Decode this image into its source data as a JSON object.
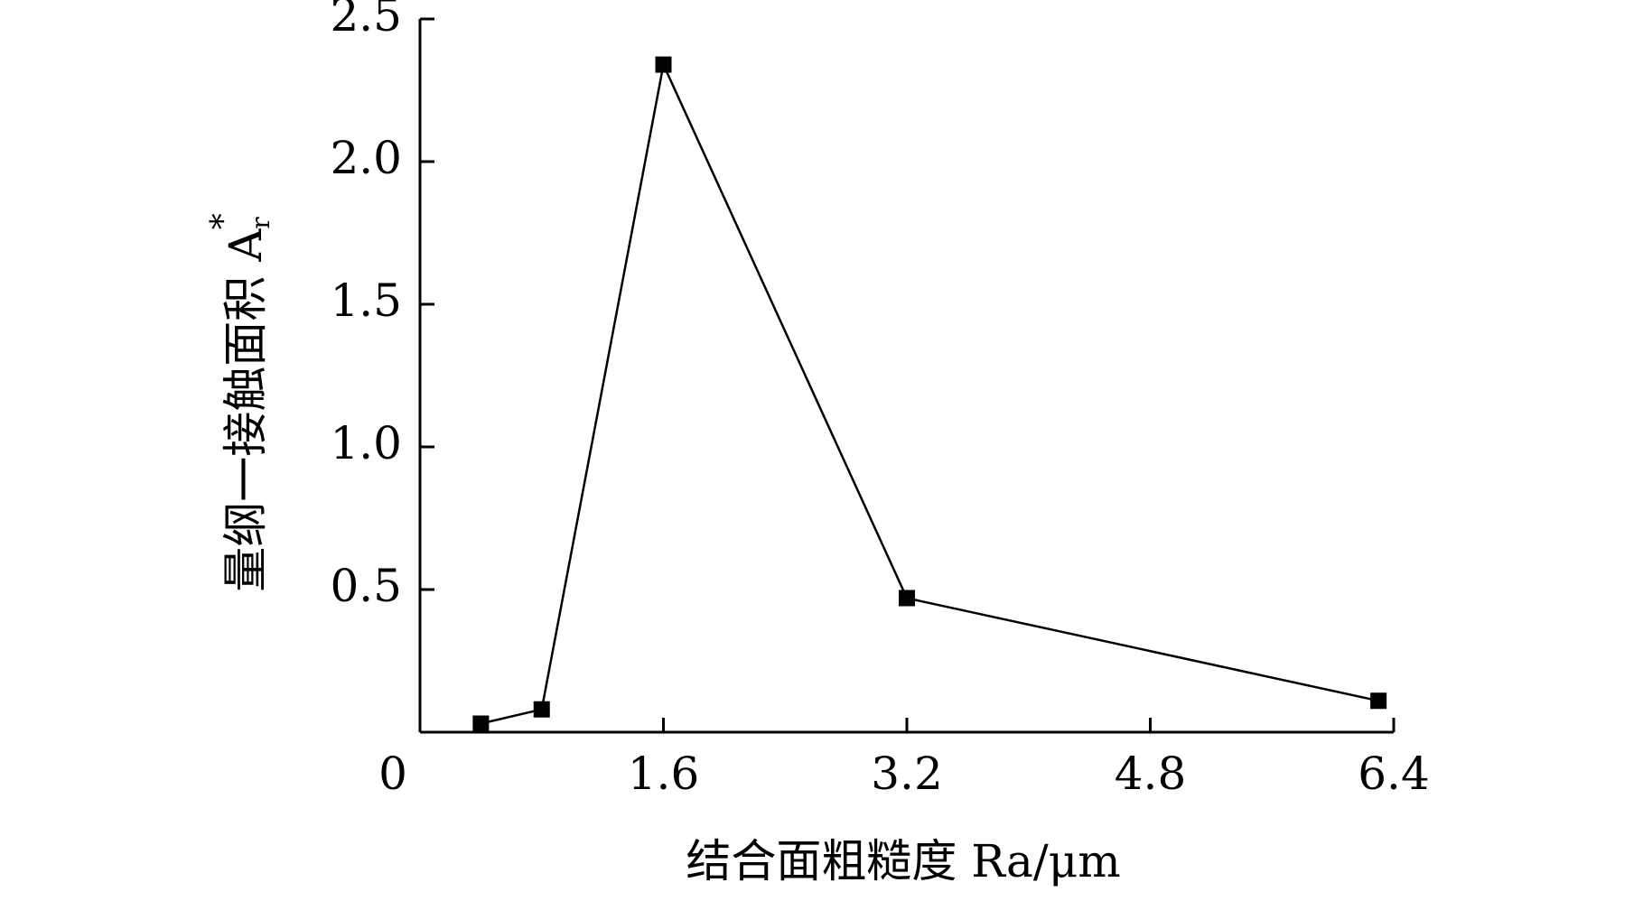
{
  "chart_data": {
    "type": "line",
    "x_label": "结合面粗糙度 Ra/μm",
    "y_label": "量纲一接触面积 A",
    "y_label_subscript": "r",
    "y_label_superscript": "*",
    "x": [
      0.4,
      0.8,
      1.6,
      3.2,
      6.3
    ],
    "series": [
      {
        "color": "#000000",
        "values": [
          0.03,
          0.08,
          2.34,
          0.47,
          0.11
        ]
      }
    ],
    "xlim": [
      0,
      6.4
    ],
    "xticks": [
      0,
      1.6,
      3.2,
      4.8,
      6.4
    ],
    "ylim": [
      0,
      2.5
    ],
    "yticks": [
      0.5,
      {
        "value": 1,
        "label": "1.0"
      },
      1.5,
      {
        "value": 2,
        "label": "2.0"
      },
      2.5
    ],
    "grid": false
  }
}
